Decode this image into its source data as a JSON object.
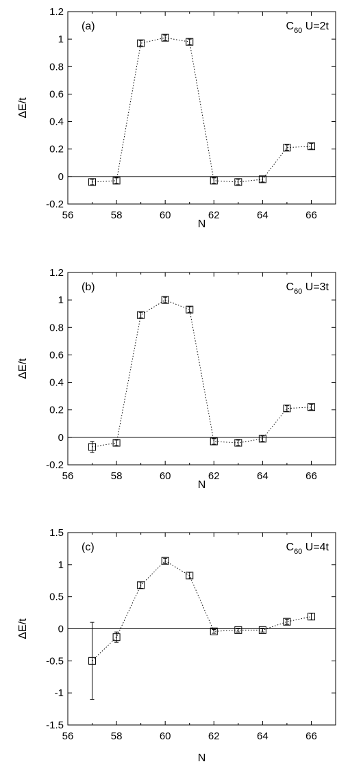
{
  "chart_data": [
    {
      "type": "line",
      "panel_label": "(a)",
      "annotation": {
        "mol": "C",
        "sub": "60",
        "rest": " U=2t"
      },
      "xlabel": "N",
      "ylabel": "ΔE/t",
      "xlim": [
        56,
        67
      ],
      "ylim": [
        -0.2,
        1.2
      ],
      "xticks": [
        56,
        58,
        60,
        62,
        64,
        66
      ],
      "yticks": [
        -0.2,
        0,
        0.2,
        0.4,
        0.6,
        0.8,
        1,
        1.2
      ],
      "ytick_labels": [
        "-0.2",
        "0",
        "0.2",
        "0.4",
        "0.6",
        "0.8",
        "1",
        "1.2"
      ],
      "grid": false,
      "zero_line": true,
      "x": [
        57,
        58,
        59,
        60,
        61,
        62,
        63,
        64,
        65,
        66
      ],
      "y": [
        -0.04,
        -0.03,
        0.97,
        1.01,
        0.98,
        -0.03,
        -0.04,
        -0.02,
        0.21,
        0.22
      ],
      "yerr": [
        0.02,
        0.02,
        0.02,
        0.02,
        0.02,
        0.02,
        0.02,
        0.02,
        0.02,
        0.02
      ]
    },
    {
      "type": "line",
      "panel_label": "(b)",
      "annotation": {
        "mol": "C",
        "sub": "60",
        "rest": " U=3t"
      },
      "xlabel": "N",
      "ylabel": "ΔE/t",
      "xlim": [
        56,
        67
      ],
      "ylim": [
        -0.2,
        1.2
      ],
      "xticks": [
        56,
        58,
        60,
        62,
        64,
        66
      ],
      "yticks": [
        -0.2,
        0,
        0.2,
        0.4,
        0.6,
        0.8,
        1,
        1.2
      ],
      "ytick_labels": [
        "-0.2",
        "0",
        "0.2",
        "0.4",
        "0.6",
        "0.8",
        "1",
        "1.2"
      ],
      "grid": false,
      "zero_line": true,
      "x": [
        57,
        58,
        59,
        60,
        61,
        62,
        63,
        64,
        65,
        66
      ],
      "y": [
        -0.07,
        -0.04,
        0.89,
        1.0,
        0.93,
        -0.03,
        -0.04,
        -0.01,
        0.21,
        0.22
      ],
      "yerr": [
        0.04,
        0.02,
        0.02,
        0.02,
        0.02,
        0.02,
        0.02,
        0.02,
        0.02,
        0.02
      ]
    },
    {
      "type": "line",
      "panel_label": "(c)",
      "annotation": {
        "mol": "C",
        "sub": "60",
        "rest": " U=4t"
      },
      "xlabel": "N",
      "ylabel": "ΔE/t",
      "xlim": [
        56,
        67
      ],
      "ylim": [
        -1.5,
        1.5
      ],
      "xticks": [
        56,
        58,
        60,
        62,
        64,
        66
      ],
      "yticks": [
        -1.5,
        -1,
        -0.5,
        0,
        0.5,
        1,
        1.5
      ],
      "ytick_labels": [
        "-1.5",
        "-1",
        "-0.5",
        "0",
        "0.5",
        "1",
        "1.5"
      ],
      "grid": false,
      "zero_line": true,
      "x": [
        57,
        58,
        59,
        60,
        61,
        62,
        63,
        64,
        65,
        66
      ],
      "y": [
        -0.5,
        -0.13,
        0.68,
        1.06,
        0.83,
        -0.04,
        -0.02,
        -0.02,
        0.11,
        0.19
      ],
      "yerr": [
        0.6,
        0.08,
        0.05,
        0.04,
        0.05,
        0.03,
        0.03,
        0.03,
        0.04,
        0.05
      ]
    }
  ]
}
